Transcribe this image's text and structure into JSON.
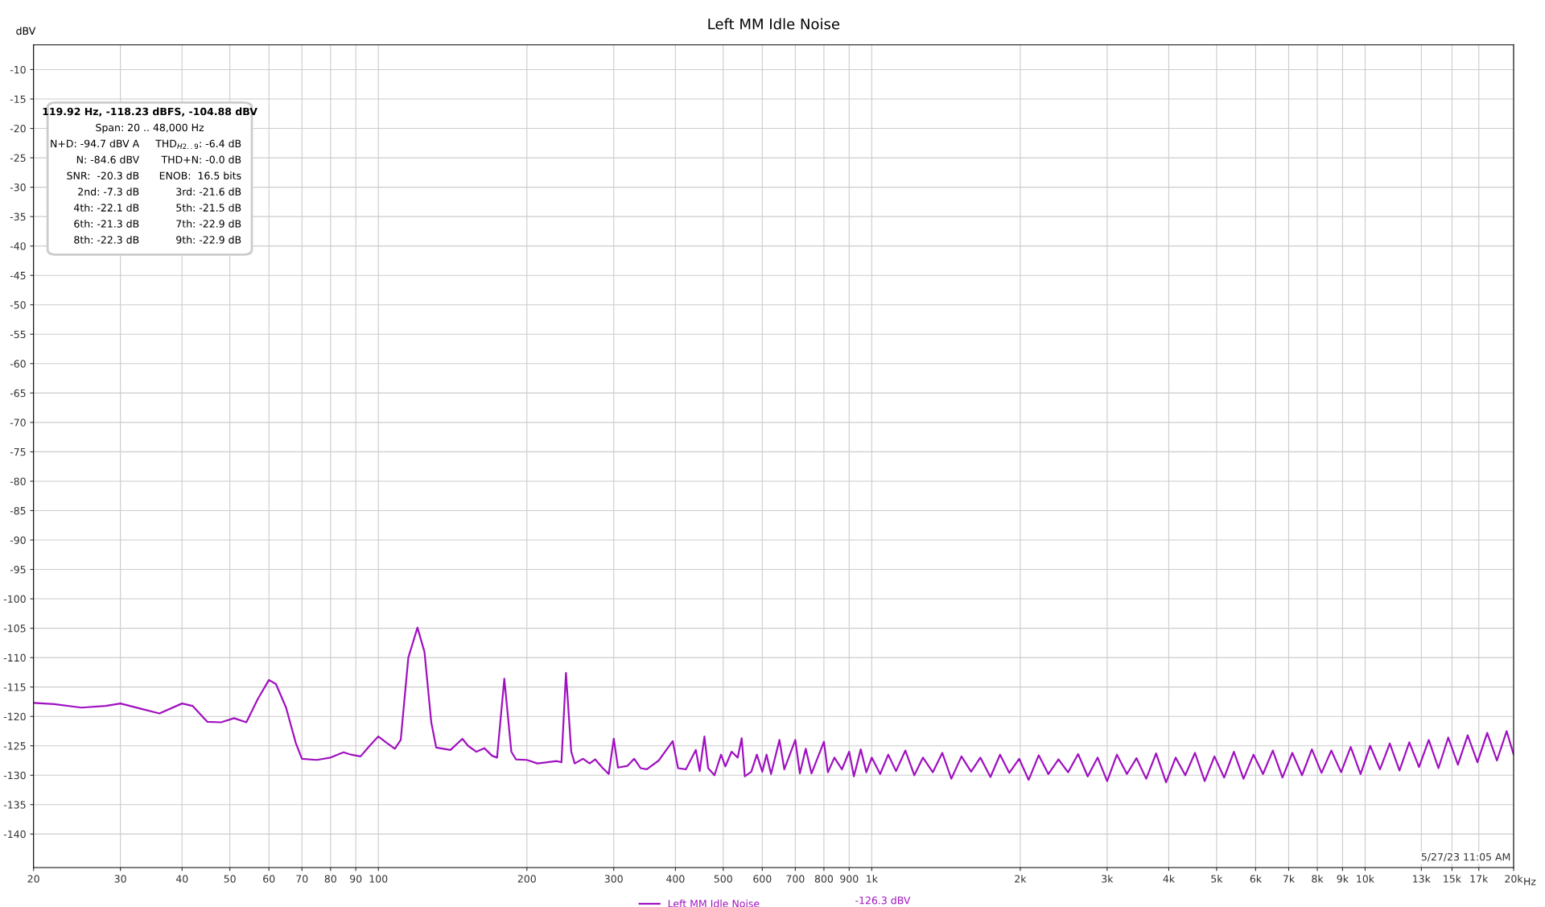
{
  "chart_data": {
    "type": "line",
    "title": "Left MM Idle Noise",
    "ylabel": "dBV",
    "x": [
      20,
      22,
      25,
      28,
      30,
      33,
      36,
      40,
      42,
      45,
      48,
      51,
      54,
      57,
      60,
      62,
      65,
      68,
      70,
      75,
      80,
      85,
      88,
      92,
      96,
      100,
      104,
      108,
      111,
      115,
      120,
      124,
      128,
      131,
      140,
      148,
      152,
      158,
      164,
      170,
      174,
      180,
      186,
      190,
      200,
      210,
      220,
      230,
      235,
      240,
      246,
      250,
      260,
      268,
      275,
      285,
      293,
      300,
      306,
      320,
      330,
      340,
      350,
      370,
      395,
      405,
      420,
      440,
      448,
      458,
      466,
      480,
      495,
      505,
      520,
      535,
      545,
      553,
      570,
      585,
      600,
      612,
      625,
      650,
      665,
      700,
      715,
      735,
      755,
      800,
      815,
      840,
      870,
      900,
      920,
      950,
      975,
      1000,
      1040,
      1080,
      1120,
      1170,
      1220,
      1270,
      1330,
      1390,
      1450,
      1520,
      1590,
      1660,
      1740,
      1820,
      1900,
      1990,
      2080,
      2180,
      2280,
      2390,
      2500,
      2620,
      2740,
      2870,
      3000,
      3140,
      3290,
      3440,
      3600,
      3770,
      3950,
      4130,
      4320,
      4520,
      4730,
      4950,
      5180,
      5420,
      5670,
      5940,
      6210,
      6500,
      6800,
      7120,
      7450,
      7800,
      8160,
      8540,
      8940,
      9350,
      9790,
      10240,
      10720,
      11220,
      11740,
      12290,
      12860,
      13460,
      14080,
      14740,
      15420,
      16140,
      16890,
      17680,
      18500,
      19360,
      20000
    ],
    "series": [
      {
        "name": "Left MM Idle Noise",
        "color": "#a010c0",
        "values": [
          -117.7,
          -117.9,
          -118.5,
          -118.2,
          -117.8,
          -118.7,
          -119.5,
          -117.8,
          -118.2,
          -120.9,
          -121,
          -120.3,
          -121,
          -117,
          -113.8,
          -114.5,
          -118.5,
          -124.5,
          -127.2,
          -127.4,
          -127,
          -126.1,
          -126.5,
          -126.8,
          -125,
          -123.4,
          -124.5,
          -125.5,
          -124,
          -110,
          -104.9,
          -109,
          -121,
          -125.3,
          -125.7,
          -123.8,
          -125,
          -126,
          -125.4,
          -126.7,
          -127,
          -113.6,
          -126,
          -127.3,
          -127.4,
          -128,
          -127.8,
          -127.6,
          -127.8,
          -112.6,
          -126,
          -128,
          -127.2,
          -128,
          -127.3,
          -128.8,
          -129.8,
          -123.8,
          -128.7,
          -128.4,
          -127.2,
          -128.8,
          -129,
          -127.5,
          -124.2,
          -128.8,
          -129,
          -125.7,
          -129.3,
          -123.4,
          -128.8,
          -130,
          -126.5,
          -128.5,
          -126,
          -127,
          -123.7,
          -130.2,
          -129.4,
          -126.5,
          -129.4,
          -126.5,
          -129.8,
          -124,
          -129,
          -124,
          -129.7,
          -125.5,
          -129.7,
          -124.3,
          -129.5,
          -127,
          -129,
          -126,
          -130.2,
          -125.6,
          -129.5,
          -127,
          -129.8,
          -126.5,
          -129.3,
          -125.8,
          -130,
          -127,
          -129.5,
          -126.2,
          -130.6,
          -126.8,
          -129.4,
          -127,
          -130.3,
          -126.5,
          -129.6,
          -127.2,
          -130.8,
          -126.6,
          -129.8,
          -127.3,
          -129.5,
          -126.4,
          -130.2,
          -127,
          -131,
          -126.5,
          -129.8,
          -127.1,
          -130.6,
          -126.3,
          -131.2,
          -127,
          -130,
          -126.2,
          -131,
          -126.8,
          -130.4,
          -126,
          -130.6,
          -126.5,
          -129.8,
          -125.8,
          -130.4,
          -126.2,
          -130,
          -125.6,
          -129.6,
          -125.8,
          -129.5,
          -125.2,
          -129.8,
          -125,
          -129,
          -124.6,
          -129.2,
          -124.4,
          -128.6,
          -124,
          -128.8,
          -123.6,
          -128.2,
          -123.2,
          -127.8,
          -122.8,
          -127.5,
          -122.5,
          -126.5
        ]
      }
    ],
    "xlim": [
      20,
      20000
    ],
    "xticks": [
      20,
      30,
      40,
      50,
      60,
      70,
      80,
      90,
      100,
      200,
      300,
      400,
      500,
      600,
      700,
      800,
      900,
      {
        "value": 1000,
        "label": "1k"
      },
      {
        "value": 2000,
        "label": "2k"
      },
      {
        "value": 3000,
        "label": "3k"
      },
      {
        "value": 4000,
        "label": "4k"
      },
      {
        "value": 5000,
        "label": "5k"
      },
      {
        "value": 6000,
        "label": "6k"
      },
      {
        "value": 7000,
        "label": "7k"
      },
      {
        "value": 8000,
        "label": "8k"
      },
      {
        "value": 9000,
        "label": "9k"
      },
      {
        "value": 10000,
        "label": "10k"
      },
      {
        "value": 13000,
        "label": "13k"
      },
      {
        "value": 15000,
        "label": "15k"
      },
      {
        "value": 17000,
        "label": "17k"
      },
      {
        "value": 20000,
        "label": "20k"
      }
    ],
    "xlabel": "Hz",
    "ylim": [
      -145.7,
      -5.8
    ],
    "yticks": [
      -10,
      -15,
      -20,
      -25,
      -30,
      -35,
      -40,
      -45,
      -50,
      -55,
      -60,
      -65,
      -70,
      -75,
      -80,
      -85,
      -90,
      -95,
      -100,
      -105,
      -110,
      -115,
      -120,
      -125,
      -130,
      -135,
      -140
    ],
    "log": "x",
    "grid": true,
    "legend": "bottom",
    "marker": "none",
    "line_style": "solid",
    "annotations": [
      "119.92 Hz, -118.23 dBFS, -104.88 dBV",
      "Span: 20 .. 48,000 Hz",
      "N+D: -94.7 dBV A",
      "THD$_{H2..9}$: -6.4 dB",
      "N: -84.6 dBV",
      "THD+N: -0.0 dB",
      "SNR:  -20.3 dB",
      "ENOB:  16.5 bits",
      "2nd: -7.3 dB",
      "3rd: -21.6 dB",
      "4th: -22.1 dB",
      "5th: -21.5 dB",
      "6th: -21.3 dB",
      "7th: -22.9 dB",
      "8th: -22.3 dB",
      "9th: -22.9 dB",
      "5/27/23 11:05 AM",
      "-126.3 dBV"
    ]
  }
}
